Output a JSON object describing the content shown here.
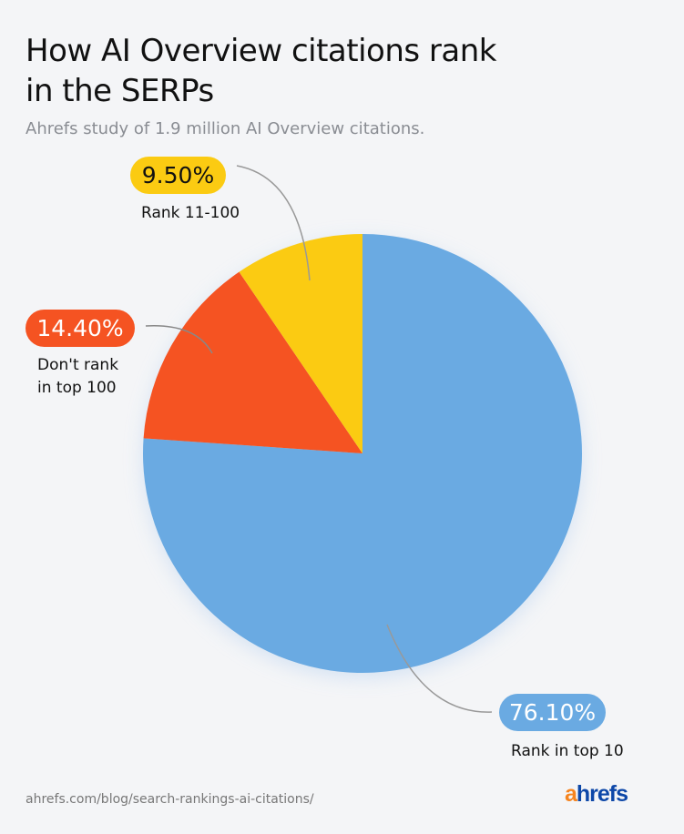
{
  "title_line1": "How AI Overview citations rank",
  "title_line2": "in the SERPs",
  "subtitle": "Ahrefs study of 1.9 million AI Overview citations.",
  "chart_data": {
    "type": "pie",
    "start": "top, clockwise",
    "slices": [
      {
        "label": "Rank in top 10",
        "value": 76.1,
        "display": "76.10%",
        "color": "#6aaae2",
        "text_color": "#ffffff"
      },
      {
        "label_lines": [
          "Don't rank",
          "in top 100"
        ],
        "label": "Don't rank in top 100",
        "value": 14.4,
        "display": "14.40%",
        "color": "#f55322",
        "text_color": "#ffffff"
      },
      {
        "label": "Rank 11-100",
        "value": 9.5,
        "display": "9.50%",
        "color": "#fbcb12",
        "text_color": "#111111"
      }
    ]
  },
  "footer": {
    "url": "ahrefs.com/blog/search-rankings-ai-citations/",
    "logo_a": "a",
    "logo_rest": "hrefs"
  }
}
